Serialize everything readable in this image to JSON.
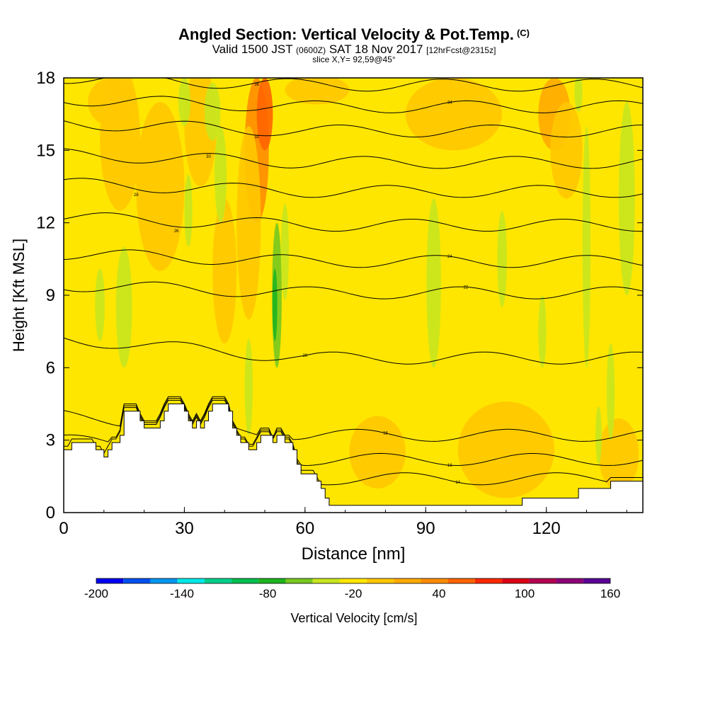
{
  "header": {
    "title": "Angled Section: Vertical Velocity & Pot.Temp.",
    "title_tag": "(C)",
    "valid_prefix": "Valid 1500 JST",
    "valid_utc": "(0600Z)",
    "valid_date": "SAT 18 Nov 2017",
    "forecast": "[12hrFcst@2315z]",
    "slice": "slice X,Y= 92,59@45°"
  },
  "chart_data": {
    "type": "heatmap",
    "xlabel": "Distance [nm]",
    "ylabel": "Height [Kft MSL]",
    "xlim": [
      0,
      144
    ],
    "ylim": [
      0,
      18
    ],
    "x_ticks": [
      0,
      30,
      60,
      90,
      120
    ],
    "x_tick_labels": [
      "0",
      "30",
      "60",
      "90",
      "120"
    ],
    "y_ticks": [
      0,
      3,
      6,
      9,
      12,
      15,
      18
    ],
    "y_tick_labels": [
      "0",
      "3",
      "6",
      "9",
      "12",
      "15",
      "18"
    ],
    "colorbar": {
      "label": "Vertical Velocity [cm/s]",
      "min": -200,
      "max": 160,
      "step": 20,
      "tick_labels": [
        "-200",
        "-140",
        "-80",
        "-20",
        "40",
        "100",
        "160"
      ],
      "colors": [
        "#0000f0",
        "#0050f0",
        "#0096f0",
        "#00e8e8",
        "#00d08c",
        "#00c050",
        "#1eb41e",
        "#78c81e",
        "#c8e61e",
        "#ffe600",
        "#ffc800",
        "#ffaa00",
        "#ff8c00",
        "#ff6400",
        "#ff2800",
        "#dc0014",
        "#b40050",
        "#8c0078",
        "#5a0096"
      ]
    },
    "background_value_range": [
      -20,
      0
    ],
    "terrain": {
      "x": [
        0,
        1,
        2,
        3,
        6,
        8,
        9,
        10,
        11,
        12,
        14,
        15,
        18,
        19,
        20,
        22,
        24,
        25,
        26,
        28,
        30,
        31,
        32,
        33,
        34,
        35,
        36,
        37,
        38,
        40,
        41,
        42,
        43,
        44,
        45,
        46,
        47,
        48,
        49,
        50,
        52,
        53,
        54,
        55,
        57,
        58,
        59,
        60,
        62,
        63,
        64,
        65,
        66,
        67,
        68,
        70,
        72,
        74,
        76,
        78,
        80,
        90,
        100,
        104,
        112,
        114,
        120,
        128,
        136,
        140,
        144
      ],
      "height_kft": [
        2.6,
        2.6,
        2.9,
        2.9,
        2.9,
        2.6,
        2.6,
        2.3,
        2.6,
        2.9,
        3.2,
        4.2,
        4.2,
        3.8,
        3.5,
        3.5,
        3.8,
        4.2,
        4.5,
        4.5,
        4.2,
        3.8,
        3.5,
        3.8,
        3.5,
        3.8,
        4.2,
        4.5,
        4.5,
        4.5,
        4.2,
        3.5,
        3.2,
        2.9,
        2.9,
        2.6,
        2.6,
        2.9,
        3.2,
        3.2,
        2.9,
        3.2,
        3.2,
        2.9,
        2.6,
        2.0,
        1.6,
        1.6,
        1.6,
        1.3,
        1.0,
        0.6,
        0.3,
        0.3,
        0.3,
        0.3,
        0.3,
        0.3,
        0.3,
        0.3,
        0.3,
        0.3,
        0.3,
        0.3,
        0.3,
        0.6,
        0.6,
        1.0,
        1.3,
        1.3,
        1.3
      ]
    },
    "isentropes": [
      {
        "label": "14",
        "base_kft": 1.4
      },
      {
        "label": "16",
        "base_kft": 2.2
      },
      {
        "label": "18",
        "base_kft": 3.2
      },
      {
        "label": "20",
        "base_kft": 6.4
      },
      {
        "label": "22",
        "base_kft": 9.1
      },
      {
        "label": "24",
        "base_kft": 10.4
      },
      {
        "label": "26",
        "base_kft": 11.9
      },
      {
        "label": "28",
        "base_kft": 13.3
      },
      {
        "label": "30",
        "base_kft": 14.5
      },
      {
        "label": "32",
        "base_kft": 15.8
      },
      {
        "label": "34",
        "base_kft": 16.8
      },
      {
        "label": "36",
        "base_kft": 17.7
      }
    ]
  }
}
